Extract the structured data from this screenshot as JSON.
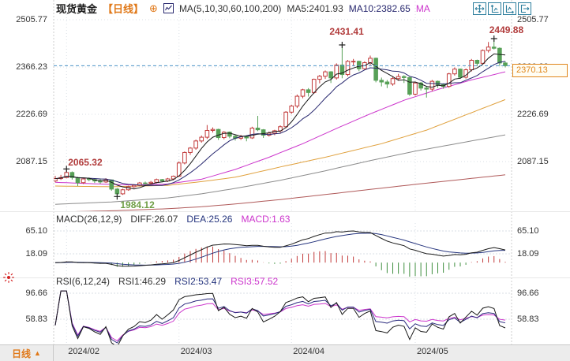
{
  "header": {
    "symbol": "现货黄金",
    "period_tag": "【日线】",
    "plus_icon": "⊕",
    "ma_params": "MA(5,10,30,60,100,200)",
    "ma5": "MA5:2401.93",
    "ma10": "MA10:2382.65",
    "ma30_clipped": "MA"
  },
  "toolbar_icons": [
    "pan-icon",
    "axis-scale-y-icon",
    "axis-scale-x-icon",
    "exit-view-icon"
  ],
  "macd_header": {
    "title": "MACD(26,12,9)",
    "diff": "DIFF:26.07",
    "dea": "DEA:25.26",
    "macd": "MACD:1.63"
  },
  "rsi_header": {
    "title": "RSI(6,12,24)",
    "rsi1": "RSI1:46.29",
    "rsi2": "RSI2:53.47",
    "rsi3": "RSI3:57.52"
  },
  "bottom_bar": {
    "period_label": "日线",
    "arrow": "▲"
  },
  "colors": {
    "up": "#c23b3b",
    "down": "#57a057",
    "ma5": "#1a1a1a",
    "ma10": "#27276e",
    "ma30": "#cc35cc",
    "ma60": "#e0a13e",
    "ma100": "#8c8c8c",
    "ma200": "#b05a5a",
    "price_line": "#4d94c8",
    "price_box": "#e0861a",
    "diff": "#1a1a1a",
    "dea": "#26357e",
    "hist_pos": "#c23b3b",
    "hist_neg": "#3f8f3f",
    "rsi1": "#1a1a1a",
    "rsi2": "#2b2b7e",
    "rsi3": "#cc35cc",
    "anno_high": "#b13b3b",
    "anno_low": "#6f9e46",
    "accent_orange": "#e07818",
    "toolbar_icon": "#2e7f9e",
    "grid": "#dadfe6"
  },
  "chart_data": {
    "type": "candlestick",
    "title": "现货黄金 日线",
    "x_axis": {
      "labels": [
        "2024/02",
        "2024/03",
        "2024/04",
        "2024/05"
      ],
      "month_start_indices": [
        2,
        22,
        42,
        64
      ]
    },
    "main": {
      "ylabels": [
        "2505.77",
        "2366.23",
        "2226.69",
        "2087.15"
      ],
      "current_price": "2370.13",
      "ma_params": [
        5,
        10,
        30,
        60,
        100,
        200
      ],
      "candles": [
        [
          2030,
          2045,
          2026,
          2037
        ],
        [
          2037,
          2048,
          2033,
          2040
        ],
        [
          2040,
          2065.32,
          2038,
          2055
        ],
        [
          2055,
          2058,
          2034,
          2040
        ],
        [
          2040,
          2042,
          2015,
          2025
        ],
        [
          2025,
          2038,
          2021,
          2036
        ],
        [
          2036,
          2040,
          2029,
          2034
        ],
        [
          2034,
          2037,
          2024,
          2030
        ],
        [
          2030,
          2035,
          2022,
          2027
        ],
        [
          2027,
          2038,
          2024,
          2033
        ],
        [
          2033,
          2034,
          2001,
          2006
        ],
        [
          2006,
          2009,
          1984.12,
          1992
        ],
        [
          1992,
          2007,
          1989,
          2004
        ],
        [
          2004,
          2016,
          2001,
          2013
        ],
        [
          2013,
          2020,
          2009,
          2017
        ],
        [
          2017,
          2027,
          2014,
          2024
        ],
        [
          2024,
          2028,
          2018,
          2023
        ],
        [
          2023,
          2030,
          2019,
          2026
        ],
        [
          2026,
          2037,
          2023,
          2034
        ],
        [
          2034,
          2036,
          2026,
          2030
        ],
        [
          2030,
          2039,
          2027,
          2036
        ],
        [
          2036,
          2046,
          2032,
          2044
        ],
        [
          2044,
          2088,
          2042,
          2083
        ],
        [
          2083,
          2117,
          2079,
          2114
        ],
        [
          2114,
          2130,
          2107,
          2127
        ],
        [
          2127,
          2152,
          2122,
          2148
        ],
        [
          2148,
          2164,
          2143,
          2159
        ],
        [
          2159,
          2195,
          2154,
          2179
        ],
        [
          2179,
          2188,
          2173,
          2182
        ],
        [
          2182,
          2184,
          2151,
          2158
        ],
        [
          2158,
          2177,
          2153,
          2174
        ],
        [
          2174,
          2176,
          2156,
          2162
        ],
        [
          2162,
          2166,
          2149,
          2156
        ],
        [
          2156,
          2166,
          2151,
          2160
        ],
        [
          2160,
          2165,
          2147,
          2157
        ],
        [
          2157,
          2190,
          2154,
          2186
        ],
        [
          2186,
          2222,
          2177,
          2181
        ],
        [
          2181,
          2183,
          2157,
          2165
        ],
        [
          2165,
          2176,
          2161,
          2171
        ],
        [
          2171,
          2181,
          2165,
          2178
        ],
        [
          2178,
          2194,
          2172,
          2190
        ],
        [
          2190,
          2236,
          2186,
          2233
        ],
        [
          2233,
          2255,
          2228,
          2251
        ],
        [
          2251,
          2285,
          2245,
          2280
        ],
        [
          2280,
          2302,
          2274,
          2299
        ],
        [
          2299,
          2304,
          2279,
          2291
        ],
        [
          2291,
          2332,
          2287,
          2330
        ],
        [
          2330,
          2343,
          2318,
          2339
        ],
        [
          2339,
          2356,
          2331,
          2352
        ],
        [
          2352,
          2354,
          2319,
          2334
        ],
        [
          2334,
          2377,
          2329,
          2372
        ],
        [
          2372,
          2431.41,
          2333,
          2344
        ],
        [
          2344,
          2387,
          2339,
          2383
        ],
        [
          2383,
          2390,
          2369,
          2383
        ],
        [
          2383,
          2385,
          2354,
          2361
        ],
        [
          2361,
          2383,
          2357,
          2379
        ],
        [
          2379,
          2400,
          2372,
          2392
        ],
        [
          2392,
          2394,
          2321,
          2327
        ],
        [
          2327,
          2335,
          2309,
          2322
        ],
        [
          2322,
          2328,
          2304,
          2316
        ],
        [
          2316,
          2337,
          2311,
          2332
        ],
        [
          2332,
          2346,
          2326,
          2338
        ],
        [
          2338,
          2342,
          2319,
          2335
        ],
        [
          2335,
          2337,
          2281,
          2286
        ],
        [
          2286,
          2323,
          2282,
          2319
        ],
        [
          2319,
          2322,
          2297,
          2304
        ],
        [
          2304,
          2310,
          2276,
          2301
        ],
        [
          2301,
          2328,
          2295,
          2324
        ],
        [
          2324,
          2326,
          2305,
          2314
        ],
        [
          2314,
          2318,
          2302,
          2309
        ],
        [
          2309,
          2349,
          2305,
          2346
        ],
        [
          2346,
          2365,
          2341,
          2360
        ],
        [
          2360,
          2362,
          2331,
          2336
        ],
        [
          2336,
          2362,
          2332,
          2358
        ],
        [
          2358,
          2390,
          2353,
          2386
        ],
        [
          2386,
          2388,
          2369,
          2377
        ],
        [
          2377,
          2418,
          2373,
          2415
        ],
        [
          2415,
          2440,
          2409,
          2425
        ],
        [
          2425,
          2449.88,
          2418,
          2421.5
        ],
        [
          2421.5,
          2424,
          2369,
          2378
        ],
        [
          2378,
          2383,
          2365,
          2370.13
        ]
      ],
      "overlay_ma": {
        "ma30": [
          [
            0,
            2026
          ],
          [
            8,
            2021
          ],
          [
            14,
            2018
          ],
          [
            20,
            2021
          ],
          [
            26,
            2035
          ],
          [
            32,
            2064
          ],
          [
            38,
            2100
          ],
          [
            44,
            2140
          ],
          [
            50,
            2185
          ],
          [
            56,
            2228
          ],
          [
            62,
            2268
          ],
          [
            68,
            2300
          ],
          [
            74,
            2328
          ],
          [
            80,
            2352
          ]
        ],
        "ma60": [
          [
            0,
            2015
          ],
          [
            10,
            2013
          ],
          [
            20,
            2017
          ],
          [
            26,
            2028
          ],
          [
            32,
            2041
          ],
          [
            41,
            2075
          ],
          [
            48,
            2100
          ],
          [
            58,
            2140
          ],
          [
            66,
            2180
          ],
          [
            73,
            2225
          ],
          [
            80,
            2270
          ]
        ],
        "ma100": [
          [
            0,
            1961
          ],
          [
            10,
            1968
          ],
          [
            20,
            1980
          ],
          [
            26,
            1992
          ],
          [
            32,
            2008
          ],
          [
            40,
            2032
          ],
          [
            48,
            2060
          ],
          [
            56,
            2090
          ],
          [
            64,
            2118
          ],
          [
            72,
            2142
          ],
          [
            80,
            2166
          ]
        ],
        "ma200": [
          [
            0,
            1938
          ],
          [
            10,
            1942
          ],
          [
            20,
            1948
          ],
          [
            26,
            1954
          ],
          [
            32,
            1962
          ],
          [
            40,
            1975
          ],
          [
            48,
            1990
          ],
          [
            56,
            2005
          ],
          [
            64,
            2020
          ],
          [
            72,
            2034
          ],
          [
            80,
            2048
          ]
        ]
      },
      "marked_points": [
        {
          "index": 2,
          "label": "2065.32",
          "side": "high",
          "offset": [
            2,
            -15
          ]
        },
        {
          "index": 11,
          "label": "1984.12",
          "side": "low",
          "offset": [
            4,
            4
          ]
        },
        {
          "index": 51,
          "label": "2431.41",
          "side": "high",
          "offset": [
            -16,
            -24
          ]
        },
        {
          "index": 78,
          "label": "2449.88",
          "side": "high",
          "offset": [
            -6,
            -18
          ]
        }
      ]
    },
    "macd": {
      "params": [
        26,
        12,
        9
      ],
      "diff": 26.07,
      "dea": 25.26,
      "macd": 1.63,
      "ylabels": [
        "65.10",
        "18.09"
      ]
    },
    "rsi": {
      "params": [
        6,
        12,
        24
      ],
      "rsi1": 46.29,
      "rsi2": 53.47,
      "rsi3": 57.52,
      "ylabels": [
        "96.66",
        "58.83"
      ]
    }
  }
}
